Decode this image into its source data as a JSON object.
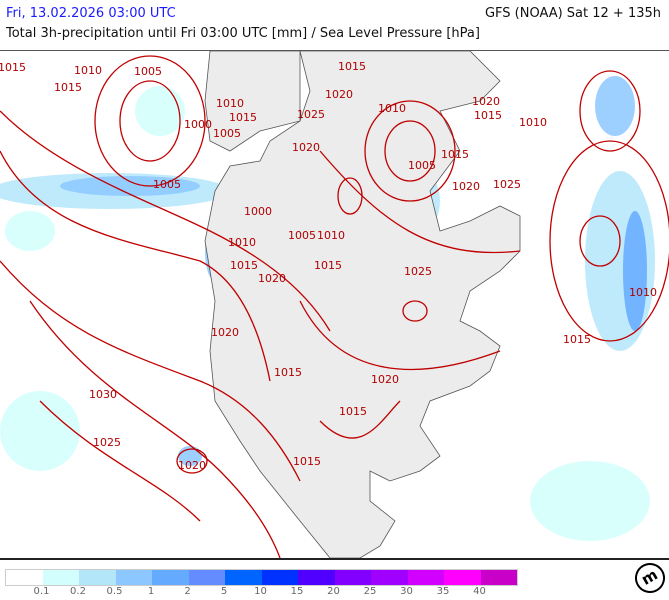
{
  "header": {
    "date": "Fri, 13.02.2026 03:00 UTC",
    "model": "GFS (NOAA) Sat 12 + 135h",
    "title": "Total 3h-precipitation until Fri 03:00 UTC [mm] / Sea Level Pressure [hPa]"
  },
  "colors": {
    "isobar": "#c00000",
    "land": "#ececec",
    "coast": "#555555"
  },
  "legend": {
    "unit": "mm",
    "colors": [
      "#ffffff",
      "#d2fffd",
      "#b4e6fa",
      "#8cc8ff",
      "#64aaff",
      "#648cff",
      "#0064ff",
      "#0032ff",
      "#5000ff",
      "#8200ff",
      "#a000ff",
      "#d200ff",
      "#ff00ff",
      "#c800c8"
    ],
    "ticks": [
      "0.1",
      "0.2",
      "0.5",
      "1",
      "2",
      "5",
      "10",
      "15",
      "20",
      "25",
      "30",
      "35",
      "40"
    ]
  },
  "isobar_labels": [
    "1015",
    "1010",
    "1005",
    "1015",
    "1000",
    "1010",
    "1015",
    "1005",
    "1005",
    "1000",
    "1010",
    "1015",
    "1020",
    "1005",
    "1010",
    "1015",
    "1025",
    "1020",
    "1015",
    "1020",
    "1015",
    "1030",
    "1025",
    "1020",
    "1015",
    "1015",
    "1020",
    "1025",
    "1020",
    "1010",
    "1005",
    "1015",
    "1020",
    "1025",
    "1020",
    "1015",
    "1010",
    "1010",
    "1015"
  ],
  "logo": "m"
}
